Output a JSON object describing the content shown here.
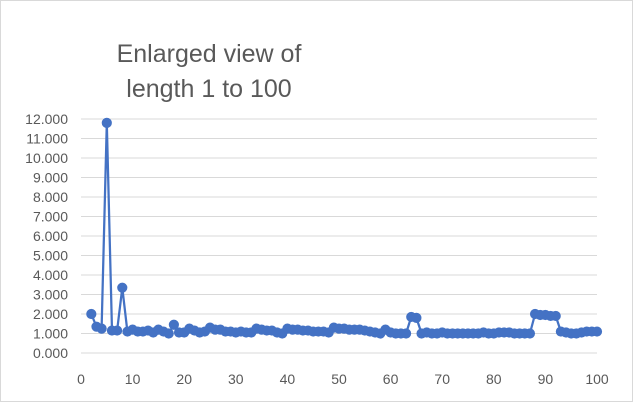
{
  "chart_data": {
    "type": "line",
    "title_lines": [
      "Enlarged view of",
      "length 1 to 100"
    ],
    "xlabel": "",
    "ylabel": "",
    "xlim": [
      0,
      100
    ],
    "ylim": [
      0,
      12
    ],
    "x_ticks": [
      "0",
      "10",
      "20",
      "30",
      "40",
      "50",
      "60",
      "70",
      "80",
      "90",
      "100"
    ],
    "y_ticks": [
      "0.000",
      "1.000",
      "2.000",
      "3.000",
      "4.000",
      "5.000",
      "6.000",
      "7.000",
      "8.000",
      "9.000",
      "10.000",
      "11.000",
      "12.000"
    ],
    "grid": {
      "horizontal": true,
      "vertical": false
    },
    "legend": "none",
    "color": "#4472C4",
    "series": [
      {
        "x": [
          2,
          3,
          4,
          5,
          6,
          7,
          8,
          9,
          10,
          11,
          12,
          13,
          14,
          15,
          16,
          17,
          18,
          19,
          20,
          21,
          22,
          23,
          24,
          25,
          26,
          27,
          28,
          29,
          30,
          31,
          32,
          33,
          34,
          35,
          36,
          37,
          38,
          39,
          40,
          41,
          42,
          43,
          44,
          45,
          46,
          47,
          48,
          49,
          50,
          51,
          52,
          53,
          54,
          55,
          56,
          57,
          58,
          59,
          60,
          61,
          62,
          63,
          64,
          65,
          66,
          67,
          68,
          69,
          70,
          71,
          72,
          73,
          74,
          75,
          76,
          77,
          78,
          79,
          80,
          81,
          82,
          83,
          84,
          85,
          86,
          87,
          88,
          89,
          90,
          91,
          92,
          93,
          94,
          95,
          96,
          97,
          98,
          99,
          100
        ],
        "y": [
          2.0,
          1.35,
          1.25,
          11.8,
          1.15,
          1.15,
          3.35,
          1.1,
          1.2,
          1.1,
          1.1,
          1.15,
          1.05,
          1.2,
          1.1,
          1.0,
          1.45,
          1.05,
          1.05,
          1.25,
          1.15,
          1.05,
          1.1,
          1.3,
          1.2,
          1.2,
          1.1,
          1.1,
          1.05,
          1.1,
          1.05,
          1.05,
          1.25,
          1.2,
          1.15,
          1.15,
          1.05,
          1.0,
          1.25,
          1.2,
          1.2,
          1.15,
          1.15,
          1.1,
          1.1,
          1.1,
          1.05,
          1.3,
          1.25,
          1.25,
          1.2,
          1.2,
          1.2,
          1.15,
          1.1,
          1.05,
          1.0,
          1.2,
          1.05,
          1.0,
          1.0,
          1.0,
          1.85,
          1.8,
          1.0,
          1.05,
          1.0,
          1.0,
          1.05,
          1.0,
          1.0,
          1.0,
          1.0,
          1.0,
          1.0,
          1.0,
          1.05,
          1.0,
          1.0,
          1.05,
          1.05,
          1.05,
          1.0,
          1.0,
          1.0,
          1.0,
          2.0,
          1.95,
          1.95,
          1.9,
          1.9,
          1.1,
          1.05,
          1.0,
          1.0,
          1.05,
          1.1,
          1.1,
          1.1
        ]
      }
    ]
  }
}
